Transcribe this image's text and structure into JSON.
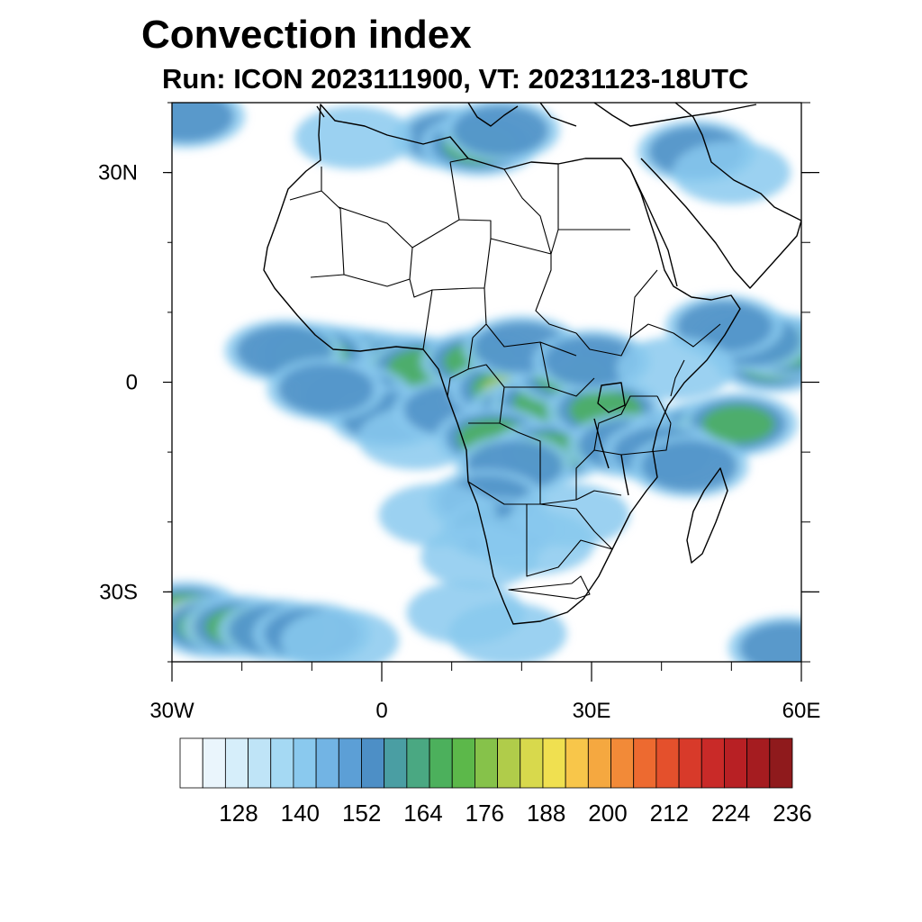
{
  "title": "Convection index",
  "subtitle": "Run: ICON 2023111900,  VT: 20231123-18UTC",
  "map": {
    "lon_range": [
      -30,
      60
    ],
    "lat_range": [
      -40,
      40
    ],
    "lat_ticks": [
      {
        "value": 30,
        "label": "30N"
      },
      {
        "value": 0,
        "label": "0"
      },
      {
        "value": -30,
        "label": "30S"
      }
    ],
    "lon_ticks": [
      {
        "value": -30,
        "label": "30W"
      },
      {
        "value": 0,
        "label": "0"
      },
      {
        "value": 30,
        "label": "30E"
      },
      {
        "value": 60,
        "label": "60E"
      }
    ]
  },
  "colorbar": {
    "colors": [
      "#ffffff",
      "#eaf5fc",
      "#d6eefa",
      "#bfe4f7",
      "#a5d9f3",
      "#8ac9ee",
      "#72b4e4",
      "#5c9fd6",
      "#4d8fc6",
      "#4a9ea3",
      "#4aa882",
      "#4cb05c",
      "#5cb84a",
      "#86c24a",
      "#b0cc4a",
      "#d8d94c",
      "#f0e050",
      "#f8c64a",
      "#f5a840",
      "#f28a38",
      "#ed6a30",
      "#e4502c",
      "#d83a2a",
      "#c92a28",
      "#b82024",
      "#a51c20",
      "#8f1a1c"
    ],
    "labels": [
      "128",
      "140",
      "152",
      "164",
      "176",
      "188",
      "200",
      "212",
      "224",
      "236"
    ]
  },
  "features": {
    "clusters": [
      {
        "lon": -6,
        "lat": 3.5,
        "intensity": 0.9
      },
      {
        "lon": -2,
        "lat": 3,
        "intensity": 0.95
      },
      {
        "lon": 3,
        "lat": 2.5,
        "intensity": 0.9
      },
      {
        "lon": -10,
        "lat": 4,
        "intensity": 0.6
      },
      {
        "lon": -14,
        "lat": 4.5,
        "intensity": 0.4
      },
      {
        "lon": 6,
        "lat": 2,
        "intensity": 0.7
      },
      {
        "lon": -4,
        "lat": -2,
        "intensity": 0.4
      },
      {
        "lon": 1,
        "lat": -5,
        "intensity": 0.45
      },
      {
        "lon": -8,
        "lat": -1,
        "intensity": 0.35
      },
      {
        "lon": 5,
        "lat": -8,
        "intensity": 0.3
      },
      {
        "lon": 10,
        "lat": -4,
        "intensity": 0.45
      },
      {
        "lon": 14,
        "lat": 3,
        "intensity": 0.6
      },
      {
        "lon": 18,
        "lat": -1,
        "intensity": 0.75
      },
      {
        "lon": 21,
        "lat": -4,
        "intensity": 0.8
      },
      {
        "lon": 24,
        "lat": -3,
        "intensity": 0.7
      },
      {
        "lon": 27,
        "lat": 1,
        "intensity": 0.65
      },
      {
        "lon": 20,
        "lat": 5,
        "intensity": 0.5
      },
      {
        "lon": 16,
        "lat": -8,
        "intensity": 0.55
      },
      {
        "lon": 24,
        "lat": -10,
        "intensity": 0.6
      },
      {
        "lon": 32,
        "lat": -4,
        "intensity": 0.55
      },
      {
        "lon": 35,
        "lat": -9,
        "intensity": 0.5
      },
      {
        "lon": 30,
        "lat": 3,
        "intensity": 0.4
      },
      {
        "lon": 19,
        "lat": -12,
        "intensity": 0.4
      },
      {
        "lon": 43,
        "lat": -8,
        "intensity": 0.95
      },
      {
        "lon": 47,
        "lat": -7,
        "intensity": 0.85
      },
      {
        "lon": 51,
        "lat": -6,
        "intensity": 0.6
      },
      {
        "lon": 40,
        "lat": -10,
        "intensity": 0.5
      },
      {
        "lon": 44,
        "lat": -12,
        "intensity": 0.35
      },
      {
        "lon": 56,
        "lat": 3,
        "intensity": 0.75
      },
      {
        "lon": 58,
        "lat": 5,
        "intensity": 0.7
      },
      {
        "lon": 53,
        "lat": 6,
        "intensity": 0.5
      },
      {
        "lon": 49,
        "lat": 8,
        "intensity": 0.35
      },
      {
        "lon": 42,
        "lat": 2,
        "intensity": 0.3
      },
      {
        "lon": 15,
        "lat": -17,
        "intensity": 0.5
      },
      {
        "lon": 17,
        "lat": -21,
        "intensity": 0.45
      },
      {
        "lon": 14,
        "lat": -25,
        "intensity": 0.3
      },
      {
        "lon": 22,
        "lat": -23,
        "intensity": 0.3
      },
      {
        "lon": 27,
        "lat": -19,
        "intensity": 0.3
      },
      {
        "lon": 8,
        "lat": -19,
        "intensity": 0.25
      },
      {
        "lon": 10,
        "lat": 35,
        "intensity": 0.5
      },
      {
        "lon": 14,
        "lat": 34,
        "intensity": 0.7
      },
      {
        "lon": 17,
        "lat": 36,
        "intensity": 0.5
      },
      {
        "lon": -4,
        "lat": 35,
        "intensity": 0.3
      },
      {
        "lon": 45,
        "lat": 33,
        "intensity": 0.35
      },
      {
        "lon": 50,
        "lat": 30,
        "intensity": 0.3
      },
      {
        "lon": -28,
        "lat": 38,
        "intensity": 0.4
      },
      {
        "lon": -28,
        "lat": -33,
        "intensity": 0.9
      },
      {
        "lon": -24,
        "lat": -35,
        "intensity": 0.75
      },
      {
        "lon": -20,
        "lat": -35,
        "intensity": 0.6
      },
      {
        "lon": -15,
        "lat": -35.5,
        "intensity": 0.5
      },
      {
        "lon": -10,
        "lat": -36,
        "intensity": 0.4
      },
      {
        "lon": -6,
        "lat": -37,
        "intensity": 0.3
      },
      {
        "lon": 12,
        "lat": -33,
        "intensity": 0.3
      },
      {
        "lon": 18,
        "lat": -36,
        "intensity": 0.25
      },
      {
        "lon": 58,
        "lat": -38,
        "intensity": 0.35
      }
    ]
  }
}
